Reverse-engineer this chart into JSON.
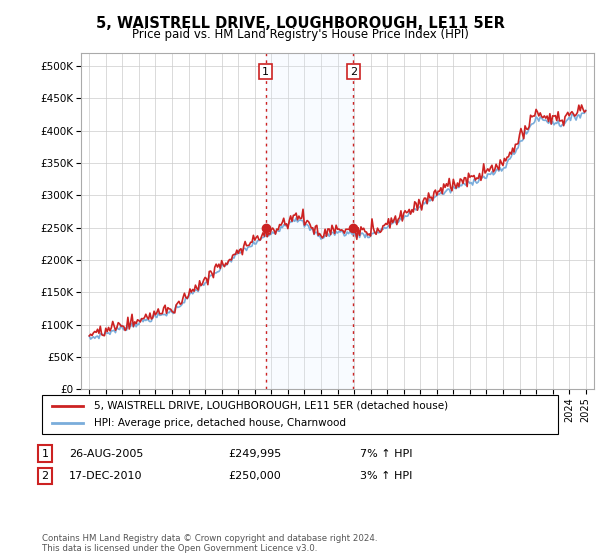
{
  "title": "5, WAISTRELL DRIVE, LOUGHBOROUGH, LE11 5ER",
  "subtitle": "Price paid vs. HM Land Registry's House Price Index (HPI)",
  "legend_line1": "5, WAISTRELL DRIVE, LOUGHBOROUGH, LE11 5ER (detached house)",
  "legend_line2": "HPI: Average price, detached house, Charnwood",
  "annotation1_date": "26-AUG-2005",
  "annotation1_price": "£249,995",
  "annotation1_hpi": "7% ↑ HPI",
  "annotation2_date": "17-DEC-2010",
  "annotation2_price": "£250,000",
  "annotation2_hpi": "3% ↑ HPI",
  "footer": "Contains HM Land Registry data © Crown copyright and database right 2024.\nThis data is licensed under the Open Government Licence v3.0.",
  "sale1_x": 2005.65,
  "sale1_y": 249995,
  "sale2_x": 2010.96,
  "sale2_y": 250000,
  "hpi_color": "#7aaddb",
  "price_color": "#cc2222",
  "sale_dot_color": "#cc2222",
  "vline_color": "#cc2222",
  "shading_color": "#ddeeff",
  "background_color": "#ffffff",
  "grid_color": "#cccccc",
  "ylim": [
    0,
    520000
  ],
  "xlim": [
    1994.5,
    2025.5
  ],
  "yticks": [
    0,
    50000,
    100000,
    150000,
    200000,
    250000,
    300000,
    350000,
    400000,
    450000,
    500000
  ],
  "ylabels": [
    "£0",
    "£50K",
    "£100K",
    "£150K",
    "£200K",
    "£250K",
    "£300K",
    "£350K",
    "£400K",
    "£450K",
    "£500K"
  ]
}
